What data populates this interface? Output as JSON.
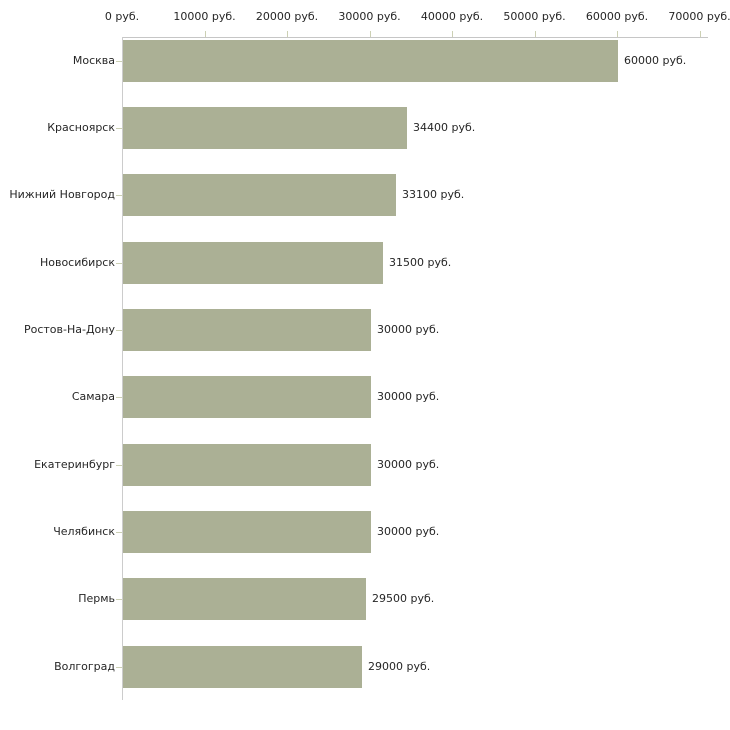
{
  "chart_data": {
    "type": "bar",
    "orientation": "horizontal",
    "title": "",
    "xlabel": "",
    "ylabel": "",
    "unit": "руб.",
    "xlim": [
      0,
      70000
    ],
    "grid": false,
    "legend": false,
    "categories": [
      "Москва",
      "Красноярск",
      "Нижний Новгород",
      "Новосибирск",
      "Ростов-На-Дону",
      "Самара",
      "Екатеринбург",
      "Челябинск",
      "Пермь",
      "Волгоград"
    ],
    "values": [
      60000,
      34400,
      33100,
      31500,
      30000,
      30000,
      30000,
      30000,
      29500,
      29000
    ],
    "value_labels": [
      "60000 руб.",
      "34400 руб.",
      "33100 руб.",
      "31500 руб.",
      "30000 руб.",
      "30000 руб.",
      "30000 руб.",
      "30000 руб.",
      "29500 руб.",
      "29000 руб."
    ],
    "x_ticks": [
      {
        "value": 0,
        "label": "0 руб."
      },
      {
        "value": 10000,
        "label": "10000 руб."
      },
      {
        "value": 20000,
        "label": "20000 руб."
      },
      {
        "value": 30000,
        "label": "30000 руб."
      },
      {
        "value": 40000,
        "label": "40000 руб."
      },
      {
        "value": 50000,
        "label": "50000 руб."
      },
      {
        "value": 60000,
        "label": "60000 руб."
      },
      {
        "value": 70000,
        "label": "70000 руб."
      }
    ],
    "colors": {
      "bar": "#abb095",
      "axis_line": "#c6c6c6",
      "tick_mark": "#ccd0b4",
      "text": "#262626",
      "background": "#ffffff"
    }
  }
}
